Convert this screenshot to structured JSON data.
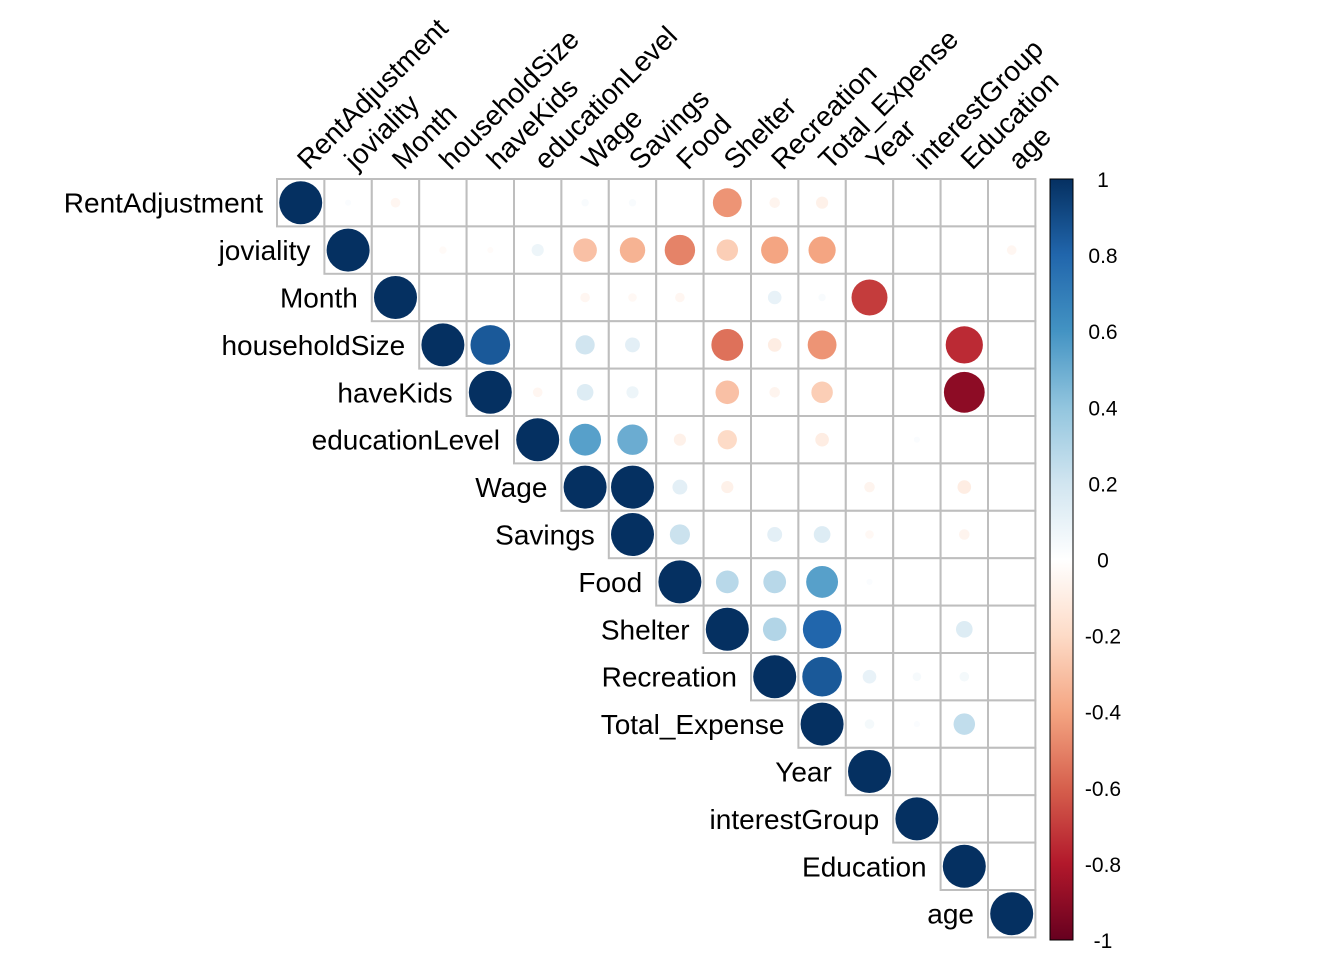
{
  "chart_data": {
    "type": "heatmap",
    "style": "upper-triangular correlation matrix, circle glyphs (area ~ |r|)",
    "variables": [
      "RentAdjustment",
      "joviality",
      "Month",
      "householdSize",
      "haveKids",
      "educationLevel",
      "Wage",
      "Savings",
      "Food",
      "Shelter",
      "Recreation",
      "Total_Expense",
      "Year",
      "interestGroup",
      "Education",
      "age"
    ],
    "correlations": [
      [
        1,
        0.02,
        -0.05,
        0,
        0,
        0,
        0.03,
        0.03,
        0,
        -0.45,
        -0.06,
        -0.08,
        0,
        0,
        0,
        0
      ],
      [
        null,
        1,
        0,
        -0.03,
        -0.02,
        0.08,
        -0.3,
        -0.35,
        -0.5,
        -0.25,
        -0.4,
        -0.4,
        0,
        0,
        0,
        -0.05
      ],
      [
        null,
        null,
        1,
        0,
        0,
        0,
        -0.05,
        -0.04,
        -0.05,
        0,
        0.1,
        0.03,
        -0.7,
        0,
        0,
        0
      ],
      [
        null,
        null,
        null,
        1,
        0.85,
        0,
        0.2,
        0.12,
        0,
        -0.55,
        -0.1,
        -0.45,
        0,
        0,
        -0.75,
        0
      ],
      [
        null,
        null,
        null,
        null,
        1,
        -0.05,
        0.15,
        0.08,
        0,
        -0.3,
        -0.06,
        -0.25,
        0,
        0,
        -0.9,
        0
      ],
      [
        null,
        null,
        null,
        null,
        null,
        1,
        0.55,
        0.5,
        -0.08,
        -0.2,
        0,
        -0.1,
        0,
        0.02,
        0,
        0
      ],
      [
        null,
        null,
        null,
        null,
        null,
        null,
        1,
        1,
        0.12,
        -0.08,
        0,
        0,
        -0.06,
        0,
        -0.1,
        0
      ],
      [
        null,
        null,
        null,
        null,
        null,
        null,
        null,
        1,
        0.22,
        0,
        0.12,
        0.15,
        -0.04,
        0,
        -0.06,
        0
      ],
      [
        null,
        null,
        null,
        null,
        null,
        null,
        null,
        null,
        1,
        0.28,
        0.28,
        0.55,
        0.02,
        0,
        0,
        0
      ],
      [
        null,
        null,
        null,
        null,
        null,
        null,
        null,
        null,
        null,
        1,
        0.3,
        0.8,
        0,
        0,
        0.15,
        0
      ],
      [
        null,
        null,
        null,
        null,
        null,
        null,
        null,
        null,
        null,
        null,
        1,
        0.85,
        0.1,
        0.04,
        0.05,
        0
      ],
      [
        null,
        null,
        null,
        null,
        null,
        null,
        null,
        null,
        null,
        null,
        null,
        1,
        0.05,
        0.02,
        0.25,
        0
      ],
      [
        null,
        null,
        null,
        null,
        null,
        null,
        null,
        null,
        null,
        null,
        null,
        null,
        1,
        0,
        0,
        0
      ],
      [
        null,
        null,
        null,
        null,
        null,
        null,
        null,
        null,
        null,
        null,
        null,
        null,
        null,
        1,
        0,
        0
      ],
      [
        null,
        null,
        null,
        null,
        null,
        null,
        null,
        null,
        null,
        null,
        null,
        null,
        null,
        null,
        1,
        0
      ],
      [
        null,
        null,
        null,
        null,
        null,
        null,
        null,
        null,
        null,
        null,
        null,
        null,
        null,
        null,
        null,
        1
      ]
    ],
    "color_legend": {
      "range": [
        -1,
        1
      ],
      "ticks": [
        "1",
        "0.8",
        "0.6",
        "0.4",
        "0.2",
        "0",
        "-0.2",
        "-0.4",
        "-0.6",
        "-0.8",
        "-1"
      ],
      "palette": [
        "#67001F",
        "#B2182B",
        "#D6604D",
        "#F4A582",
        "#FDDBC7",
        "#FFFFFF",
        "#D1E5F0",
        "#92C5DE",
        "#4393C3",
        "#2166AC",
        "#053061"
      ]
    },
    "grid": true
  }
}
